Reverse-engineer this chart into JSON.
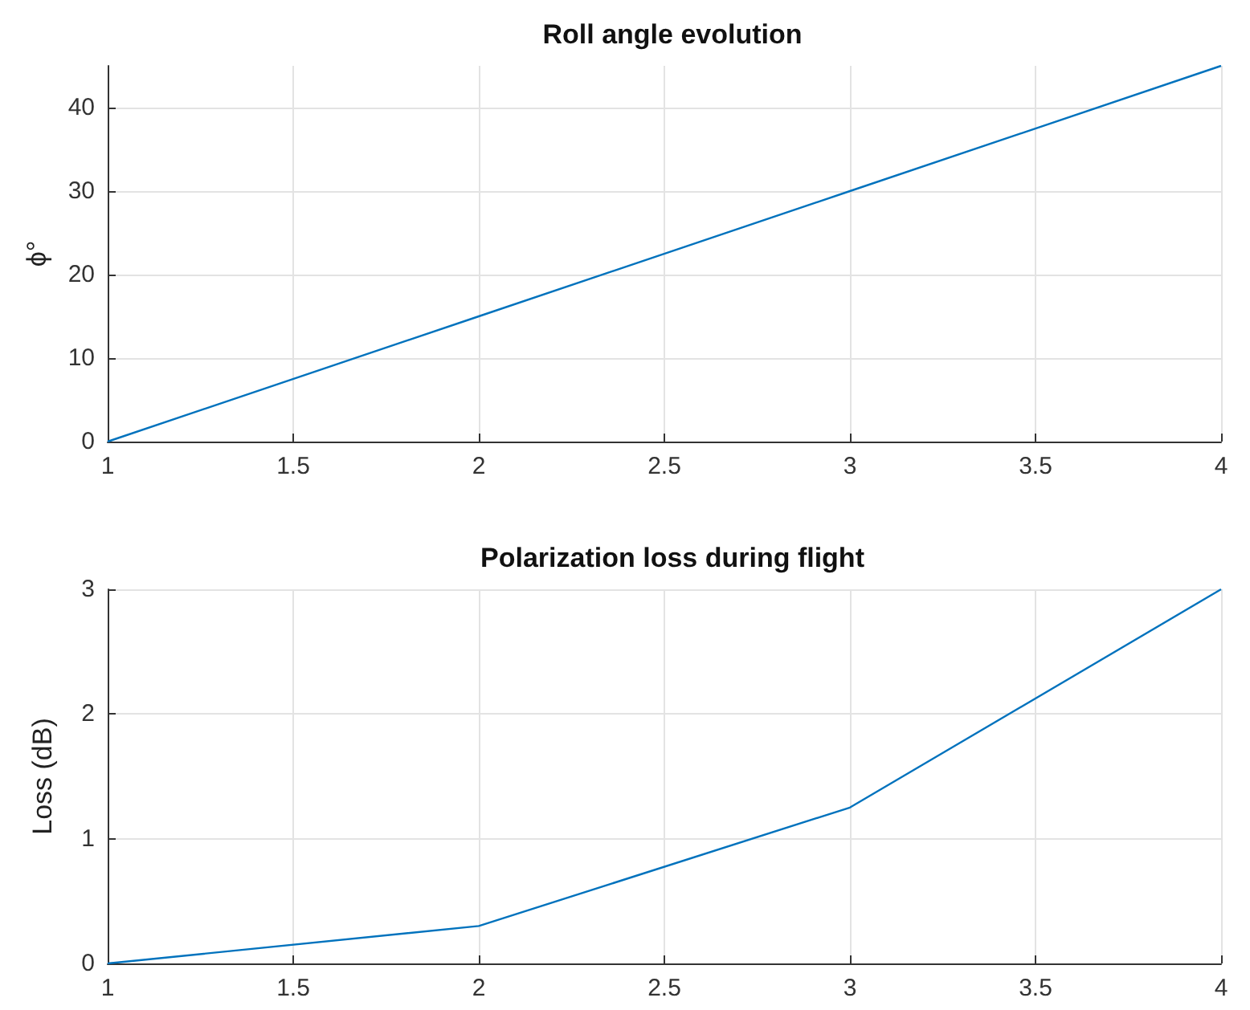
{
  "chart_data": [
    {
      "type": "line",
      "title": "Roll angle evolution",
      "ylabel": "ϕ°",
      "x": [
        1,
        2,
        3,
        4
      ],
      "series": [
        {
          "color": "#0072bd",
          "values": [
            0,
            15,
            30,
            45
          ]
        }
      ],
      "xlim": [
        1,
        4
      ],
      "xticks": [
        1,
        1.5,
        2,
        2.5,
        3,
        3.5,
        4
      ],
      "ylim": [
        0,
        45
      ],
      "yticks": [
        0,
        10,
        20,
        30,
        40
      ],
      "grid": true,
      "line_style": "solid"
    },
    {
      "type": "line",
      "title": "Polarization loss during flight",
      "ylabel": "Loss (dB)",
      "x": [
        1,
        2,
        3,
        4
      ],
      "series": [
        {
          "color": "#0072bd",
          "values": [
            0,
            0.3,
            1.25,
            3
          ]
        }
      ],
      "xlim": [
        1,
        4
      ],
      "xticks": [
        1,
        1.5,
        2,
        2.5,
        3,
        3.5,
        4
      ],
      "ylim": [
        0,
        3
      ],
      "yticks": [
        0,
        1,
        2,
        3
      ],
      "grid": true,
      "line_style": "solid"
    }
  ]
}
